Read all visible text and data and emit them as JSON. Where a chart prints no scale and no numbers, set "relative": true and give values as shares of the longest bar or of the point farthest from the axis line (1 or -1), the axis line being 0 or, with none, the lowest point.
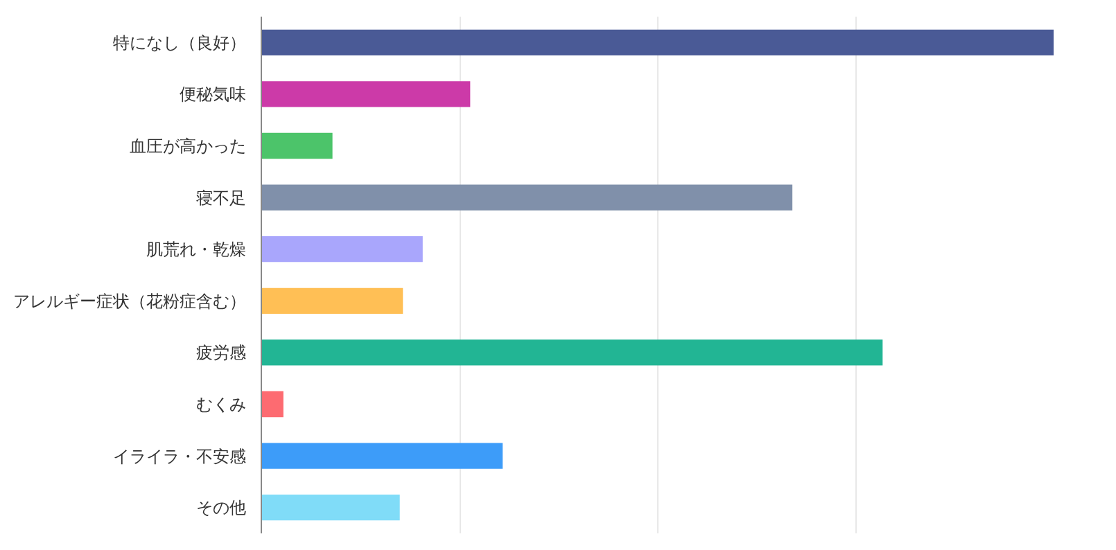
{
  "chart_data": {
    "type": "bar",
    "orientation": "horizontal",
    "relative": true,
    "grid": "x",
    "legend": false,
    "categories": [
      "特になし（良好）",
      "便秘気味",
      "血圧が高かった",
      "寝不足",
      "肌荒れ・乾燥",
      "アレルギー症状（花粉症含む）",
      "疲労感",
      "むくみ",
      "イライラ・不安感",
      "その他"
    ],
    "values": [
      1.0,
      0.263,
      0.089,
      0.67,
      0.203,
      0.178,
      0.784,
      0.027,
      0.304,
      0.174
    ],
    "colors": [
      "#4a5a96",
      "#cc3aa8",
      "#4cc46a",
      "#8090aa",
      "#a9a6fc",
      "#ffbf55",
      "#22b594",
      "#fd6b71",
      "#3d9cf9",
      "#80dcf8"
    ]
  }
}
